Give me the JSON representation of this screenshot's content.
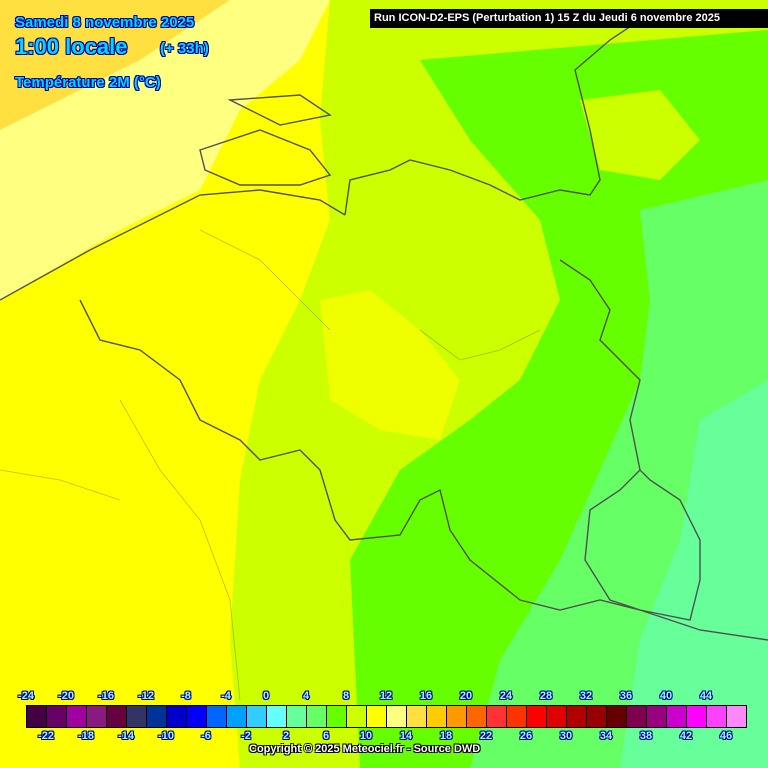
{
  "header": {
    "date": "Samedi 8 novembre 2025",
    "time": "1:00 locale",
    "lead": "(+ 33h)",
    "parameter": "Température 2M (°C)",
    "run": "Run ICON-D2-EPS (Perturbation 1) 15 Z du Jeudi 6 novembre 2025"
  },
  "legend": {
    "top_labels": [
      "-24",
      "-20",
      "-16",
      "-12",
      "-8",
      "-4",
      "0",
      "4",
      "8",
      "12",
      "16",
      "20",
      "24",
      "28",
      "32",
      "36",
      "40",
      "44"
    ],
    "bottom_labels": [
      "-22",
      "-18",
      "-14",
      "-10",
      "-6",
      "-2",
      "2",
      "6",
      "10",
      "14",
      "18",
      "22",
      "26",
      "30",
      "34",
      "38",
      "42",
      "46"
    ],
    "colors": [
      "#440044",
      "#660066",
      "#a000a0",
      "#881a80",
      "#660040",
      "#333366",
      "#003399",
      "#0000cc",
      "#0000ff",
      "#0066ff",
      "#00a0ff",
      "#33ccff",
      "#66ffff",
      "#66ff99",
      "#66ff66",
      "#66ff00",
      "#ccff00",
      "#ffff00",
      "#ffff80",
      "#ffe040",
      "#ffcc00",
      "#ff9900",
      "#ff6600",
      "#ff3333",
      "#ff3300",
      "#ff0000",
      "#e00000",
      "#b00000",
      "#990000",
      "#660000",
      "#800050",
      "#990080",
      "#cc00cc",
      "#ff00ff",
      "#ff40ff",
      "#ff88ff"
    ]
  },
  "copyright": "Copyright © 2025 Meteociel.fr - Source DWD"
}
